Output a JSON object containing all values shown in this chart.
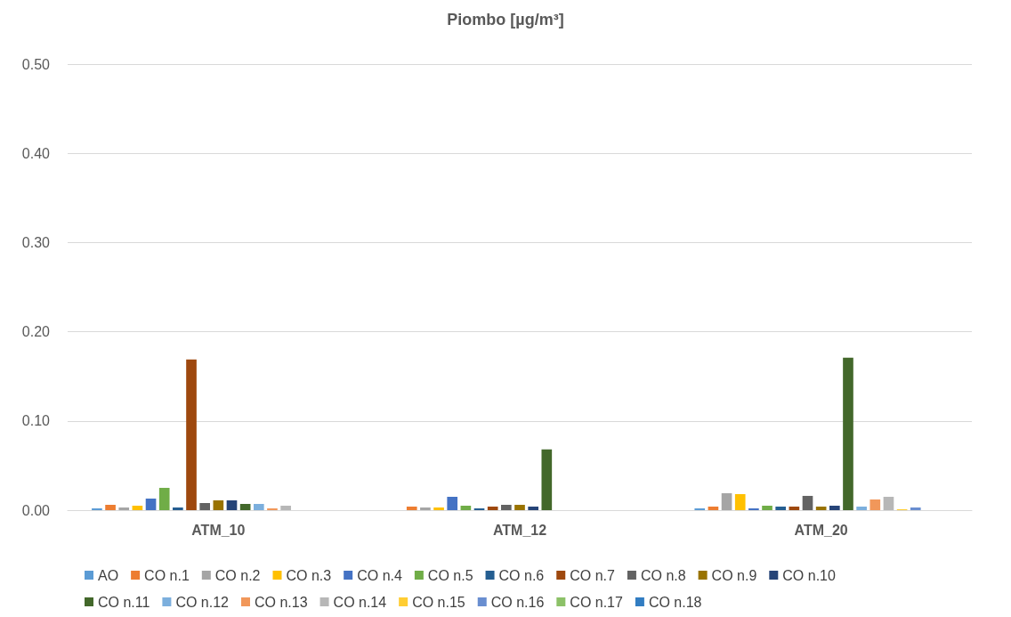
{
  "chart_data": {
    "type": "bar",
    "title": "Piombo [µg/m³]",
    "categories": [
      "ATM_10",
      "ATM_12",
      "ATM_20"
    ],
    "series": [
      {
        "name": "AO",
        "color": "#5b9bd5",
        "values": [
          0.002,
          null,
          0.002
        ]
      },
      {
        "name": "CO n.1",
        "color": "#ed7d31",
        "values": [
          0.006,
          0.004,
          0.004
        ]
      },
      {
        "name": "CO n.2",
        "color": "#a5a5a5",
        "values": [
          0.003,
          0.003,
          0.019
        ]
      },
      {
        "name": "CO n.3",
        "color": "#ffc000",
        "values": [
          0.005,
          0.003,
          0.018
        ]
      },
      {
        "name": "CO n.4",
        "color": "#4472c4",
        "values": [
          0.013,
          0.015,
          0.002
        ]
      },
      {
        "name": "CO n.5",
        "color": "#70ad47",
        "values": [
          0.025,
          0.005,
          0.005
        ]
      },
      {
        "name": "CO n.6",
        "color": "#255e91",
        "values": [
          0.003,
          0.002,
          0.004
        ]
      },
      {
        "name": "CO n.7",
        "color": "#9e480e",
        "values": [
          0.169,
          0.004,
          0.004
        ]
      },
      {
        "name": "CO n.8",
        "color": "#636363",
        "values": [
          0.008,
          0.006,
          0.016
        ]
      },
      {
        "name": "CO n.9",
        "color": "#997300",
        "values": [
          0.011,
          0.006,
          0.004
        ]
      },
      {
        "name": "CO n.10",
        "color": "#264478",
        "values": [
          0.011,
          0.004,
          0.005
        ]
      },
      {
        "name": "CO n.11",
        "color": "#43682b",
        "values": [
          0.007,
          0.068,
          0.171
        ]
      },
      {
        "name": "CO n.12",
        "color": "#7cafdd",
        "values": [
          0.007,
          null,
          0.004
        ]
      },
      {
        "name": "CO n.13",
        "color": "#f1975a",
        "values": [
          0.002,
          null,
          0.012
        ]
      },
      {
        "name": "CO n.14",
        "color": "#b7b7b7",
        "values": [
          0.005,
          null,
          0.015
        ]
      },
      {
        "name": "CO n.15",
        "color": "#ffcd33",
        "values": [
          null,
          null,
          0.001
        ]
      },
      {
        "name": "CO n.16",
        "color": "#698ed0",
        "values": [
          null,
          null,
          0.003
        ]
      },
      {
        "name": "CO n.17",
        "color": "#8cc168",
        "values": [
          null,
          null,
          null
        ]
      },
      {
        "name": "CO n.18",
        "color": "#327dc2",
        "values": [
          null,
          null,
          null
        ]
      }
    ],
    "ylim": [
      0,
      0.5
    ],
    "yticks": [
      {
        "value": 0,
        "label": "0.00"
      },
      {
        "value": 0.1,
        "label": "0.10"
      },
      {
        "value": 0.2,
        "label": "0.20"
      },
      {
        "value": 0.3,
        "label": "0.30"
      },
      {
        "value": 0.4,
        "label": "0.40"
      },
      {
        "value": 0.5,
        "label": "0.50"
      }
    ],
    "grid": "y",
    "legend": "bottom"
  }
}
